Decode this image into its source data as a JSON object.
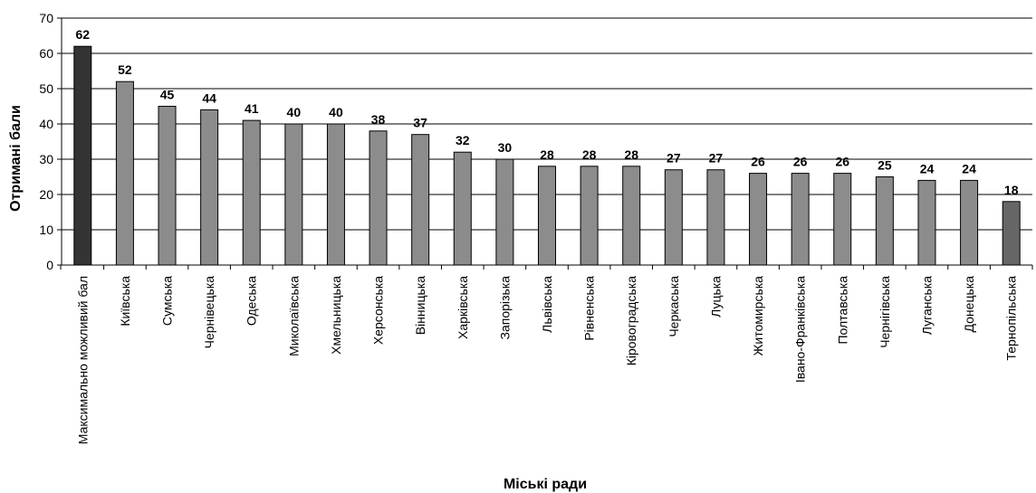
{
  "chart_data": {
    "type": "bar",
    "title": "",
    "xlabel": "Міські ради",
    "ylabel": "Отримані бали",
    "ylim": [
      0,
      70
    ],
    "yticks": [
      0,
      10,
      20,
      30,
      40,
      50,
      60,
      70
    ],
    "grid": true,
    "legend": "none",
    "categories": [
      "Максимально можливий бал",
      "Київська",
      "Сумська",
      "Чернівецька",
      "Одеська",
      "Миколаївська",
      "Хмельницька",
      "Херсонська",
      "Вінницька",
      "Харківська",
      "Запорізька",
      "Львівська",
      "Рівненська",
      "Кіровоградська",
      "Черкаська",
      "Луцька",
      "Житомирська",
      "Івано-Франківська",
      "Полтавська",
      "Чернігівська",
      "Луганська",
      "Донецька",
      "Тернопільська"
    ],
    "values": [
      62,
      52,
      45,
      44,
      41,
      40,
      40,
      38,
      37,
      32,
      30,
      28,
      28,
      28,
      27,
      27,
      26,
      26,
      26,
      25,
      24,
      24,
      18
    ],
    "colors": {
      "max_bar": "#333333",
      "bar": "#8c8c8c",
      "last_bar": "#666666",
      "gridline": "#000000"
    }
  }
}
